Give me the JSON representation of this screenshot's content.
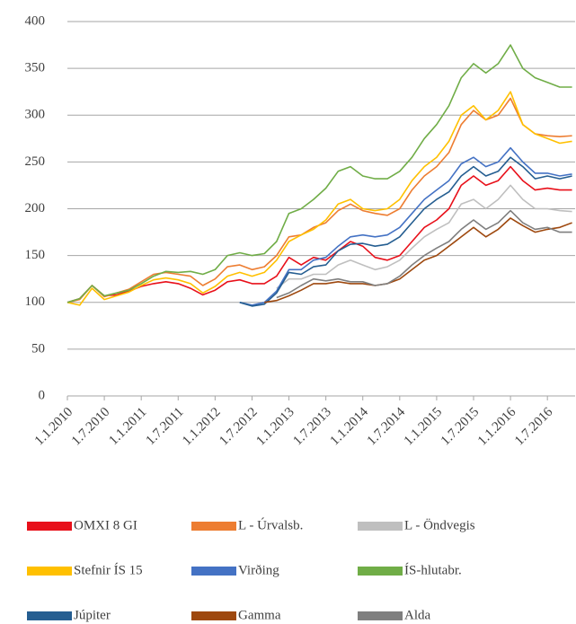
{
  "chart_data": {
    "type": "line",
    "x": [
      0,
      2,
      4,
      6,
      8,
      10,
      12,
      14,
      16,
      18,
      20,
      22,
      24,
      26,
      28,
      30,
      32,
      34,
      36,
      38,
      40,
      42,
      44,
      46,
      48,
      50,
      52,
      54,
      56,
      58,
      60,
      62,
      64,
      66,
      68,
      70,
      72,
      74,
      76,
      78,
      80,
      82
    ],
    "xlim": [
      0,
      82.5
    ],
    "xticks": [
      {
        "value": 0,
        "label": "1.1.2010"
      },
      {
        "value": 6,
        "label": "1.7.2010"
      },
      {
        "value": 12,
        "label": "1.1.2011"
      },
      {
        "value": 18,
        "label": "1.7.2011"
      },
      {
        "value": 24,
        "label": "1.1.2012"
      },
      {
        "value": 30,
        "label": "1.7.2012"
      },
      {
        "value": 36,
        "label": "1.1.2013"
      },
      {
        "value": 42,
        "label": "1.7.2013"
      },
      {
        "value": 48,
        "label": "1.1.2014"
      },
      {
        "value": 54,
        "label": "1.7.2014"
      },
      {
        "value": 60,
        "label": "1.1.2015"
      },
      {
        "value": 66,
        "label": "1.7.2015"
      },
      {
        "value": 72,
        "label": "1.1.2016"
      },
      {
        "value": 78,
        "label": "1.7.2016"
      }
    ],
    "ylim": [
      0,
      400
    ],
    "yticks": [
      0,
      50,
      100,
      150,
      200,
      250,
      300,
      350,
      400
    ],
    "grid": true,
    "series": [
      {
        "name": "OMXI 8 GI",
        "color": "#e8101a",
        "values": [
          100,
          104,
          118,
          107,
          108,
          112,
          117,
          120,
          122,
          120,
          115,
          108,
          113,
          122,
          124,
          120,
          120,
          128,
          148,
          140,
          148,
          145,
          155,
          165,
          160,
          148,
          145,
          150,
          165,
          180,
          188,
          200,
          225,
          235,
          225,
          230,
          245,
          230,
          220,
          222,
          220,
          220
        ]
      },
      {
        "name": "L - Úrvalsb.",
        "color": "#ed7d31",
        "values": [
          100,
          103,
          118,
          106,
          110,
          114,
          122,
          130,
          132,
          130,
          128,
          118,
          125,
          138,
          140,
          135,
          138,
          150,
          170,
          172,
          180,
          185,
          198,
          205,
          198,
          195,
          193,
          200,
          220,
          235,
          245,
          260,
          290,
          305,
          295,
          300,
          318,
          290,
          280,
          278,
          277,
          278
        ]
      },
      {
        "name": "L - Öndvegis",
        "color": "#bfbfbf",
        "values": [
          null,
          null,
          null,
          null,
          null,
          null,
          null,
          null,
          null,
          null,
          null,
          null,
          null,
          null,
          null,
          null,
          null,
          115,
          125,
          125,
          130,
          130,
          140,
          145,
          140,
          135,
          138,
          145,
          158,
          170,
          178,
          185,
          205,
          210,
          200,
          210,
          225,
          210,
          200,
          200,
          198,
          197
        ]
      },
      {
        "name": "Stefnir ÍS 15",
        "color": "#ffc000",
        "values": [
          100,
          97,
          115,
          103,
          107,
          111,
          118,
          124,
          126,
          124,
          120,
          110,
          117,
          128,
          132,
          128,
          132,
          145,
          165,
          172,
          178,
          188,
          205,
          210,
          200,
          198,
          200,
          210,
          230,
          245,
          255,
          272,
          300,
          310,
          295,
          305,
          325,
          290,
          280,
          275,
          270,
          272
        ]
      },
      {
        "name": "Virðing",
        "color": "#4472c4",
        "values": [
          null,
          null,
          null,
          null,
          null,
          null,
          null,
          null,
          null,
          null,
          null,
          null,
          null,
          null,
          100,
          97,
          100,
          112,
          135,
          135,
          145,
          148,
          160,
          170,
          172,
          170,
          172,
          180,
          195,
          210,
          220,
          230,
          248,
          255,
          245,
          250,
          265,
          250,
          238,
          238,
          235,
          237
        ]
      },
      {
        "name": "ÍS-hlutabr.",
        "color": "#70ad47",
        "values": [
          100,
          104,
          118,
          107,
          110,
          113,
          120,
          128,
          133,
          132,
          133,
          130,
          135,
          150,
          153,
          150,
          152,
          165,
          195,
          200,
          210,
          222,
          240,
          245,
          235,
          232,
          232,
          240,
          255,
          275,
          290,
          310,
          340,
          355,
          345,
          355,
          375,
          350,
          340,
          335,
          330,
          330
        ]
      },
      {
        "name": "Júpiter",
        "color": "#255e91",
        "values": [
          null,
          null,
          null,
          null,
          null,
          null,
          null,
          null,
          null,
          null,
          null,
          null,
          null,
          null,
          100,
          96,
          98,
          110,
          132,
          130,
          138,
          140,
          155,
          162,
          163,
          160,
          162,
          170,
          185,
          200,
          210,
          218,
          235,
          245,
          235,
          240,
          255,
          245,
          232,
          235,
          232,
          235
        ]
      },
      {
        "name": "Gamma",
        "color": "#9e480e",
        "values": [
          null,
          null,
          null,
          null,
          null,
          null,
          null,
          null,
          null,
          null,
          null,
          null,
          null,
          null,
          null,
          null,
          100,
          102,
          107,
          113,
          120,
          120,
          122,
          120,
          120,
          118,
          120,
          125,
          135,
          145,
          150,
          160,
          170,
          180,
          170,
          178,
          190,
          182,
          175,
          178,
          180,
          185
        ]
      },
      {
        "name": "Alda",
        "color": "#7f7f7f",
        "values": [
          null,
          null,
          null,
          null,
          null,
          null,
          null,
          null,
          null,
          null,
          null,
          null,
          null,
          null,
          null,
          null,
          null,
          105,
          110,
          118,
          125,
          123,
          125,
          122,
          122,
          118,
          120,
          128,
          140,
          150,
          158,
          165,
          178,
          188,
          178,
          185,
          198,
          185,
          178,
          180,
          175,
          175
        ]
      }
    ]
  }
}
